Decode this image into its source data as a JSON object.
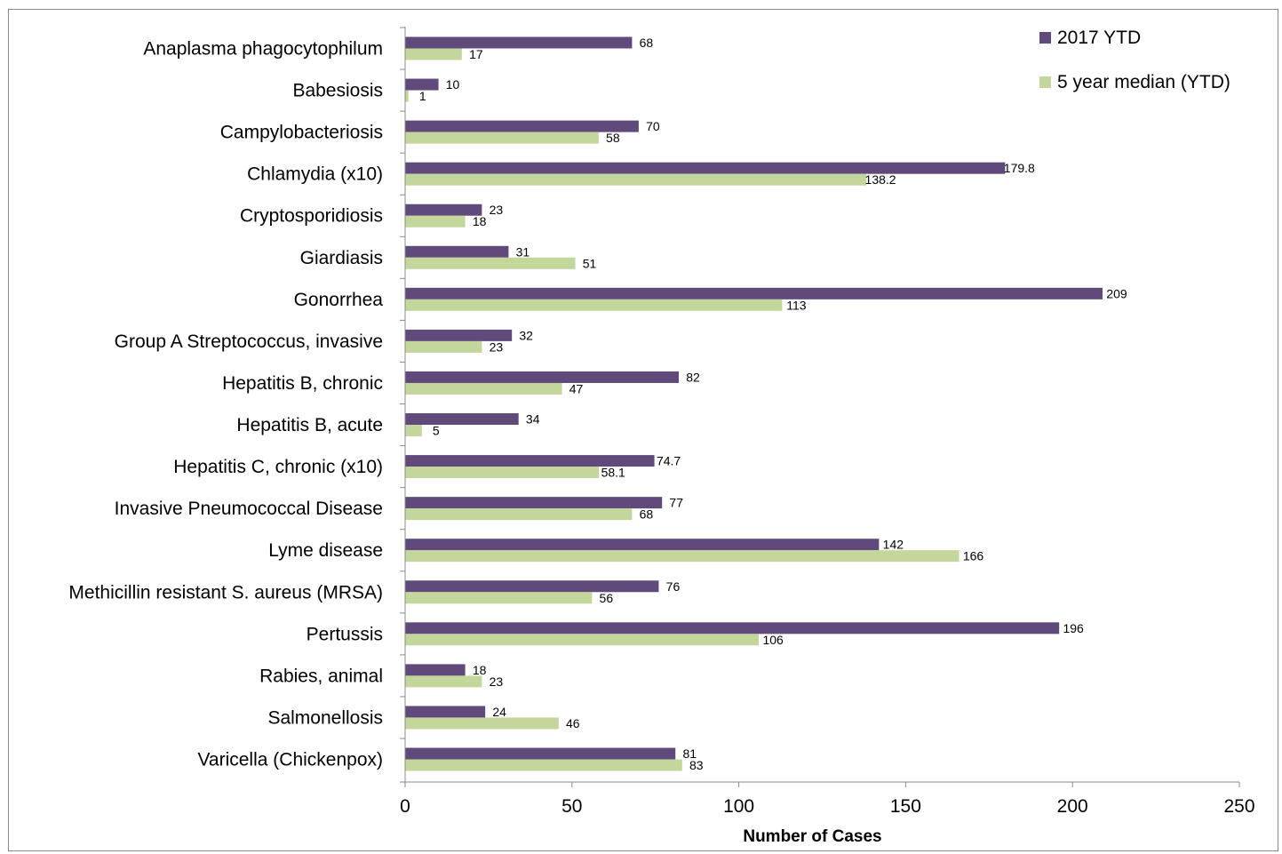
{
  "chart_data": {
    "type": "bar",
    "orientation": "horizontal",
    "title": "",
    "xlabel": "Number of Cases",
    "ylabel": "",
    "xlim": [
      0,
      250
    ],
    "x_ticks": [
      0,
      50,
      100,
      150,
      200,
      250
    ],
    "grid": false,
    "legend_position": "top-right",
    "categories": [
      "Anaplasma phagocytophilum",
      "Babesiosis",
      "Campylobacteriosis",
      "Chlamydia (x10)",
      "Cryptosporidiosis",
      "Giardiasis",
      "Gonorrhea",
      "Group A Streptococcus, invasive",
      "Hepatitis B, chronic",
      "Hepatitis B, acute",
      "Hepatitis C, chronic (x10)",
      "Invasive Pneumococcal Disease",
      "Lyme disease",
      "Methicillin resistant S. aureus (MRSA)",
      "Pertussis",
      "Rabies, animal",
      "Salmonellosis",
      "Varicella (Chickenpox)"
    ],
    "series": [
      {
        "name": "2017 YTD",
        "color": "#604a7b",
        "values": [
          68,
          10,
          70,
          179.8,
          23,
          31,
          209,
          32,
          82,
          34,
          74.7,
          77,
          142,
          76,
          196,
          18,
          24,
          81
        ],
        "labels": [
          "68",
          "10",
          "70",
          "179.8",
          "23",
          "31",
          "209",
          "32",
          "82",
          "34",
          "74.7",
          "77",
          "142",
          "76",
          "196",
          "18",
          "24",
          "81"
        ]
      },
      {
        "name": "5 year median (YTD)",
        "color": "#c3d69b",
        "values": [
          17,
          1,
          58,
          138.2,
          18,
          51,
          113,
          23,
          47,
          5,
          58.1,
          68,
          166,
          56,
          106,
          23,
          46,
          83
        ],
        "labels": [
          "17",
          "1",
          "58",
          "138.2",
          "18",
          "51",
          "113",
          "23",
          "47",
          "5",
          "58.1",
          "68",
          "166",
          "56",
          "106",
          "23",
          "46",
          "83"
        ]
      }
    ]
  }
}
